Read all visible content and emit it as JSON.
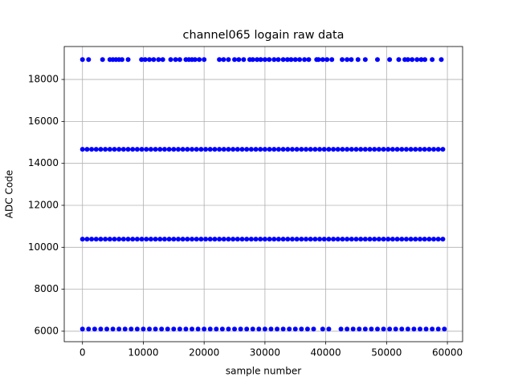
{
  "chart_data": {
    "type": "scatter",
    "title": "channel065 logain raw data",
    "xlabel": "sample number",
    "ylabel": "ADC Code",
    "color": "blue",
    "grid": true,
    "xlim": [
      -3000,
      62500
    ],
    "ylim": [
      5500,
      19570
    ],
    "xticks": [
      0,
      10000,
      20000,
      30000,
      40000,
      50000,
      60000
    ],
    "yticks": [
      6000,
      8000,
      10000,
      12000,
      14000,
      16000,
      18000
    ],
    "series": [
      {
        "x": [
          0,
          1000,
          3300,
          4500,
          5000,
          5500,
          6000,
          6500,
          7500,
          9700,
          10300,
          11000,
          11700,
          12500,
          13200,
          14500,
          15300,
          16000,
          17000,
          17500,
          18000,
          18500,
          19200,
          20000,
          22500,
          23200,
          24000,
          25000,
          25700,
          26500,
          27500,
          28000,
          28700,
          29300,
          30000,
          30700,
          31500,
          32200,
          33000,
          33700,
          34300,
          35000,
          35700,
          36500,
          37200,
          38500,
          38800,
          39500,
          40200,
          41000,
          42700,
          43500,
          44200,
          45300,
          46500,
          48500,
          50500,
          52000,
          53000,
          53500,
          54200,
          55000,
          55700,
          56300,
          57500,
          59000
        ],
        "values": [
          18950,
          18950,
          18950,
          18950,
          18950,
          18950,
          18950,
          18950,
          18950,
          18950,
          18950,
          18950,
          18950,
          18950,
          18950,
          18950,
          18950,
          18950,
          18950,
          18950,
          18950,
          18950,
          18950,
          18950,
          18950,
          18950,
          18950,
          18950,
          18950,
          18950,
          18950,
          18950,
          18950,
          18950,
          18950,
          18950,
          18950,
          18950,
          18950,
          18950,
          18950,
          18950,
          18950,
          18950,
          18950,
          18950,
          18950,
          18950,
          18950,
          18950,
          18950,
          18950,
          18950,
          18950,
          18950,
          18950,
          18950,
          18950,
          18950,
          18950,
          18950,
          18950,
          18950,
          18950,
          18950,
          18950
        ]
      },
      {
        "x": [
          0,
          750,
          1500,
          2250,
          3000,
          3750,
          4500,
          5250,
          6000,
          6750,
          7500,
          8250,
          9000,
          9750,
          10500,
          11250,
          12000,
          12750,
          13500,
          14250,
          15000,
          15750,
          16500,
          17250,
          18000,
          18750,
          19500,
          20250,
          21000,
          21750,
          22500,
          23250,
          24000,
          24750,
          25500,
          26250,
          27000,
          27750,
          28500,
          29250,
          30000,
          30750,
          31500,
          32250,
          33000,
          33750,
          34500,
          35250,
          36000,
          36750,
          37500,
          38250,
          39000,
          39750,
          40500,
          41250,
          42000,
          42750,
          43500,
          44250,
          45000,
          45750,
          46500,
          47250,
          48000,
          48750,
          49500,
          50250,
          51000,
          51750,
          52500,
          53250,
          54000,
          54750,
          55500,
          56250,
          57000,
          57750,
          58500,
          59250
        ],
        "values": [
          14670,
          14670,
          14670,
          14670,
          14670,
          14670,
          14670,
          14670,
          14670,
          14670,
          14670,
          14670,
          14670,
          14670,
          14670,
          14670,
          14670,
          14670,
          14670,
          14670,
          14670,
          14670,
          14670,
          14670,
          14670,
          14670,
          14670,
          14670,
          14670,
          14670,
          14670,
          14670,
          14670,
          14670,
          14670,
          14670,
          14670,
          14670,
          14670,
          14670,
          14670,
          14670,
          14670,
          14670,
          14670,
          14670,
          14670,
          14670,
          14670,
          14670,
          14670,
          14670,
          14670,
          14670,
          14670,
          14670,
          14670,
          14670,
          14670,
          14670,
          14670,
          14670,
          14670,
          14670,
          14670,
          14670,
          14670,
          14670,
          14670,
          14670,
          14670,
          14670,
          14670,
          14670,
          14670,
          14670,
          14670,
          14670,
          14670,
          14670
        ]
      },
      {
        "x": [
          0,
          750,
          1500,
          2250,
          3000,
          3750,
          4500,
          5250,
          6000,
          6750,
          7500,
          8250,
          9000,
          9750,
          10500,
          11250,
          12000,
          12750,
          13500,
          14250,
          15000,
          15750,
          16500,
          17250,
          18000,
          18750,
          19500,
          20250,
          21000,
          21750,
          22500,
          23250,
          24000,
          24750,
          25500,
          26250,
          27000,
          27750,
          28500,
          29250,
          30000,
          30750,
          31500,
          32250,
          33000,
          33750,
          34500,
          35250,
          36000,
          36750,
          37500,
          38250,
          39000,
          39750,
          40500,
          41250,
          42000,
          42750,
          43500,
          44250,
          45000,
          45750,
          46500,
          47250,
          48000,
          48750,
          49500,
          50250,
          51000,
          51750,
          52500,
          53250,
          54000,
          54750,
          55500,
          56250,
          57000,
          57750,
          58500,
          59250
        ],
        "values": [
          10390,
          10390,
          10390,
          10390,
          10390,
          10390,
          10390,
          10390,
          10390,
          10390,
          10390,
          10390,
          10390,
          10390,
          10390,
          10390,
          10390,
          10390,
          10390,
          10390,
          10390,
          10390,
          10390,
          10390,
          10390,
          10390,
          10390,
          10390,
          10390,
          10390,
          10390,
          10390,
          10390,
          10390,
          10390,
          10390,
          10390,
          10390,
          10390,
          10390,
          10390,
          10390,
          10390,
          10390,
          10390,
          10390,
          10390,
          10390,
          10390,
          10390,
          10390,
          10390,
          10390,
          10390,
          10390,
          10390,
          10390,
          10390,
          10390,
          10390,
          10390,
          10390,
          10390,
          10390,
          10390,
          10390,
          10390,
          10390,
          10390,
          10390,
          10390,
          10390,
          10390,
          10390,
          10390,
          10390,
          10390,
          10390,
          10390,
          10390
        ]
      },
      {
        "x": [
          0,
          1000,
          2000,
          3000,
          4000,
          5000,
          6000,
          7000,
          8000,
          9000,
          10000,
          11000,
          12000,
          13000,
          14000,
          15000,
          16000,
          17000,
          18000,
          19000,
          20000,
          21000,
          22000,
          23000,
          24000,
          25000,
          26000,
          27000,
          28000,
          29000,
          30000,
          31000,
          32000,
          33000,
          34000,
          35000,
          36000,
          37000,
          38000,
          39500,
          40500,
          42500,
          43500,
          44500,
          45500,
          46500,
          47500,
          48500,
          49500,
          50500,
          51500,
          52500,
          53500,
          54500,
          55500,
          56500,
          57500,
          58500,
          59500
        ],
        "values": [
          6100,
          6100,
          6100,
          6100,
          6100,
          6100,
          6100,
          6100,
          6100,
          6100,
          6100,
          6100,
          6100,
          6100,
          6100,
          6100,
          6100,
          6100,
          6100,
          6100,
          6100,
          6100,
          6100,
          6100,
          6100,
          6100,
          6100,
          6100,
          6100,
          6100,
          6100,
          6100,
          6100,
          6100,
          6100,
          6100,
          6100,
          6100,
          6100,
          6100,
          6100,
          6100,
          6100,
          6100,
          6100,
          6100,
          6100,
          6100,
          6100,
          6100,
          6100,
          6100,
          6100,
          6100,
          6100,
          6100,
          6100,
          6100,
          6100
        ]
      }
    ]
  }
}
